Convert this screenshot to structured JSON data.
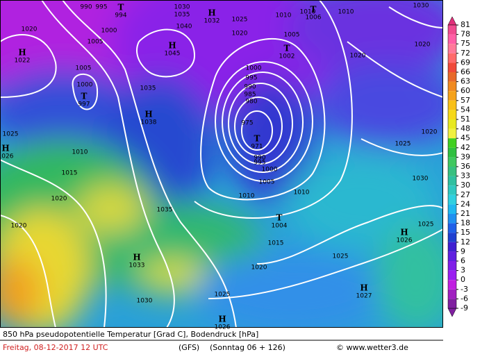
{
  "footer": {
    "title": "850 hPa pseudopotentielle Temperatur [Grad C], Bodendruck [hPa]",
    "date": "Freitag, 08-12-2017  12 UTC",
    "model": "(GFS)",
    "run": "(Sonntag 06 + 126)",
    "credit": "© www.wetter3.de"
  },
  "colorbar": {
    "levels": [
      81,
      78,
      75,
      72,
      69,
      66,
      63,
      60,
      57,
      54,
      51,
      48,
      45,
      42,
      39,
      36,
      33,
      30,
      27,
      24,
      21,
      18,
      15,
      12,
      9,
      6,
      3,
      0,
      -3,
      -6,
      -9
    ],
    "colors": [
      "#e0307a",
      "#f04b8f",
      "#ff5fa6",
      "#ff7a9a",
      "#ff6b6b",
      "#f04a3a",
      "#e86a2a",
      "#f08a20",
      "#f5a21a",
      "#f8c018",
      "#f6d818",
      "#e8e820",
      "#f0f040",
      "#40d020",
      "#30c040",
      "#40c860",
      "#38c080",
      "#30c0a0",
      "#30c8c0",
      "#30d0e0",
      "#20b8f0",
      "#2090f0",
      "#2060e8",
      "#2040d0",
      "#4020d0",
      "#6020e0",
      "#8020e8",
      "#9a20f0",
      "#c020e0",
      "#a020c0",
      "#8020a0"
    ]
  },
  "isobar_labels": [
    "990",
    "995",
    "1000",
    "1005",
    "1020",
    "1005",
    "1000",
    "1035",
    "1030",
    "1035",
    "1040",
    "1025",
    "1020",
    "1010",
    "1005",
    "1000",
    "995",
    "990",
    "985",
    "980",
    "975",
    "1000",
    "995",
    "990",
    "1005",
    "1010",
    "1010",
    "1015",
    "1020",
    "1025",
    "1030",
    "1035",
    "1020",
    "1015",
    "1010",
    "1025",
    "1020",
    "1025",
    "1025",
    "1030",
    "1025",
    "1020",
    "1020",
    "1020",
    "1030",
    "1010",
    "1010"
  ],
  "pressure_centers": [
    {
      "symbol": "H",
      "value": "1022"
    },
    {
      "symbol": "T",
      "value": "997"
    },
    {
      "symbol": "T",
      "value": "994"
    },
    {
      "symbol": "H",
      "value": "1045"
    },
    {
      "symbol": "H",
      "value": "1032"
    },
    {
      "symbol": "H",
      "value": "1038"
    },
    {
      "symbol": "T",
      "value": "971"
    },
    {
      "symbol": "T",
      "value": "1002"
    },
    {
      "symbol": "T",
      "value": "1006"
    },
    {
      "symbol": "H",
      "value": "1026"
    },
    {
      "symbol": "T",
      "value": "1004"
    },
    {
      "symbol": "H",
      "value": "1026"
    },
    {
      "symbol": "H",
      "value": "1033"
    },
    {
      "symbol": "H",
      "value": "1027"
    },
    {
      "symbol": "H",
      "value": "1026"
    }
  ]
}
